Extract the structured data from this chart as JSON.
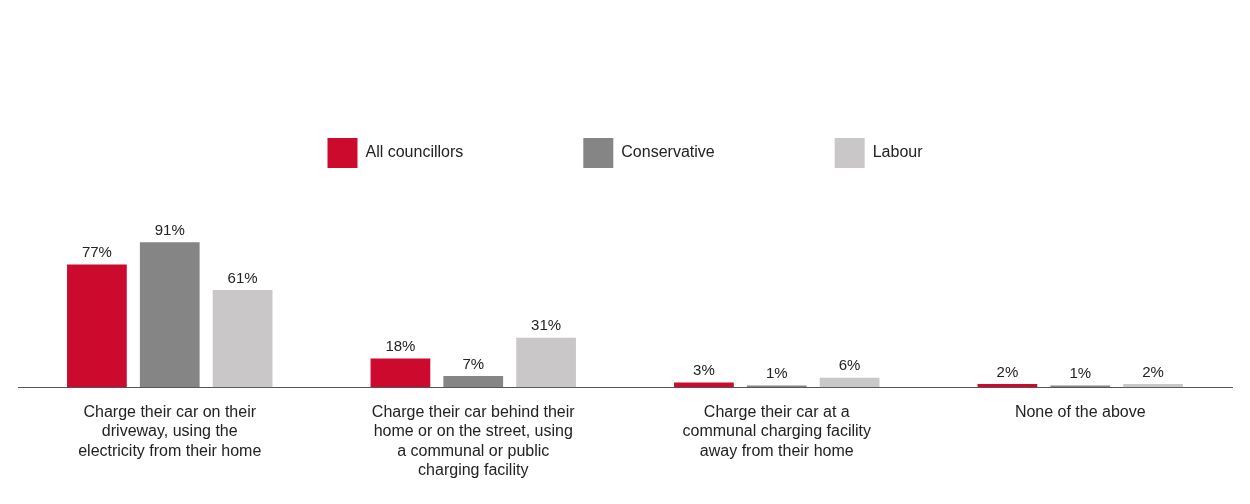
{
  "chart_data": {
    "type": "bar",
    "categories": [
      "Charge their car on their driveway, using the electricity from their home",
      "Charge their car behind their home or on the street, using a communal or public charging facility",
      "Charge their car at a communal charging facility away from their home",
      "None of the above"
    ],
    "series": [
      {
        "name": "All councillors",
        "color": "#cc0a2e",
        "values": [
          77,
          18,
          3,
          2
        ],
        "value_labels": [
          "77%",
          "18%",
          "3%",
          "2%"
        ]
      },
      {
        "name": "Conservative",
        "color": "#858585",
        "values": [
          91,
          7,
          1,
          1
        ],
        "value_labels": [
          "91%",
          "7%",
          "1%",
          "1%"
        ]
      },
      {
        "name": "Labour",
        "color": "#c9c7c8",
        "values": [
          61,
          31,
          6,
          2
        ],
        "value_labels": [
          "61%",
          "31%",
          "6%",
          "2%"
        ]
      }
    ],
    "legend": "top",
    "grid": false
  }
}
